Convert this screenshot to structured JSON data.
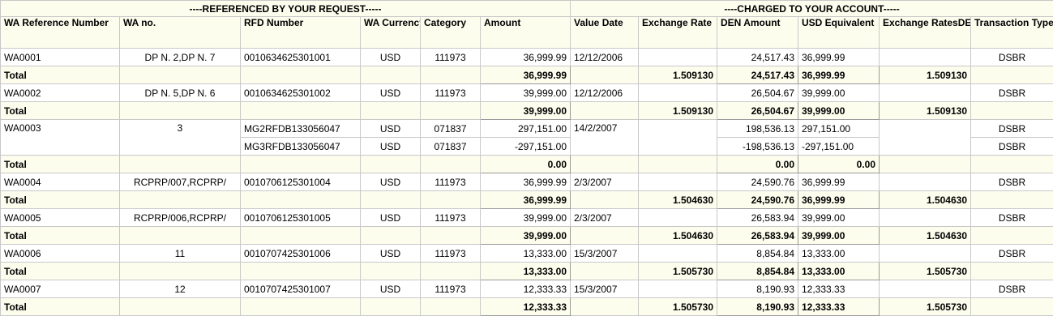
{
  "groups": {
    "referenced": "----REFERENCED BY YOUR REQUEST-----",
    "charged": "----CHARGED TO YOUR ACCOUNT-----"
  },
  "columns": [
    "WA Reference Number",
    "WA no.",
    "RFD Number",
    "WA Currency",
    "Category",
    "Amount",
    "Value Date",
    "Exchange Rate",
    "DEN Amount",
    "USD Equivalent",
    "Exchange RatesDEN/USD",
    "Transaction Type"
  ],
  "total_label": "Total",
  "records": [
    {
      "ref": "WA0001",
      "wa_no": "DP N. 2,DP N. 7",
      "value_date": "12/12/2006",
      "lines": [
        {
          "rfd": "0010634625301001",
          "currency": "USD",
          "category": "111973",
          "amount": "36,999.99",
          "den": "24,517.43",
          "usd": "36,999.99",
          "type": "DSBR"
        }
      ],
      "total": {
        "amount": "36,999.99",
        "rate": "1.509130",
        "den": "24,517.43",
        "usd": "36,999.99",
        "den_usd": "1.509130"
      }
    },
    {
      "ref": "WA0002",
      "wa_no": "DP N. 5,DP N. 6",
      "value_date": "12/12/2006",
      "lines": [
        {
          "rfd": "0010634625301002",
          "currency": "USD",
          "category": "111973",
          "amount": "39,999.00",
          "den": "26,504.67",
          "usd": "39,999.00",
          "type": "DSBR"
        }
      ],
      "total": {
        "amount": "39,999.00",
        "rate": "1.509130",
        "den": "26,504.67",
        "usd": "39,999.00",
        "den_usd": "1.509130"
      }
    },
    {
      "ref": "WA0003",
      "wa_no": "3",
      "value_date": "14/2/2007",
      "lines": [
        {
          "rfd": "MG2RFDB133056047",
          "currency": "USD",
          "category": "071837",
          "amount": "297,151.00",
          "den": "198,536.13",
          "usd": "297,151.00",
          "type": "DSBR"
        },
        {
          "rfd": "MG3RFDB133056047",
          "currency": "USD",
          "category": "071837",
          "amount": "-297,151.00",
          "den": "-198,536.13",
          "usd": "-297,151.00",
          "type": "DSBR"
        }
      ],
      "total": {
        "amount": "0.00",
        "rate": "",
        "den": "0.00",
        "usd": "0.00",
        "den_usd": ""
      }
    },
    {
      "ref": "WA0004",
      "wa_no": "RCPRP/007,RCPRP/",
      "value_date": "2/3/2007",
      "lines": [
        {
          "rfd": "0010706125301004",
          "currency": "USD",
          "category": "111973",
          "amount": "36,999.99",
          "den": "24,590.76",
          "usd": "36,999.99",
          "type": "DSBR"
        }
      ],
      "total": {
        "amount": "36,999.99",
        "rate": "1.504630",
        "den": "24,590.76",
        "usd": "36,999.99",
        "den_usd": "1.504630"
      }
    },
    {
      "ref": "WA0005",
      "wa_no": "RCPRP/006,RCPRP/",
      "value_date": "2/3/2007",
      "lines": [
        {
          "rfd": "0010706125301005",
          "currency": "USD",
          "category": "111973",
          "amount": "39,999.00",
          "den": "26,583.94",
          "usd": "39,999.00",
          "type": "DSBR"
        }
      ],
      "total": {
        "amount": "39,999.00",
        "rate": "1.504630",
        "den": "26,583.94",
        "usd": "39,999.00",
        "den_usd": "1.504630"
      }
    },
    {
      "ref": "WA0006",
      "wa_no": "11",
      "value_date": "15/3/2007",
      "lines": [
        {
          "rfd": "0010707425301006",
          "currency": "USD",
          "category": "111973",
          "amount": "13,333.00",
          "den": "8,854.84",
          "usd": "13,333.00",
          "type": "DSBR"
        }
      ],
      "total": {
        "amount": "13,333.00",
        "rate": "1.505730",
        "den": "8,854.84",
        "usd": "13,333.00",
        "den_usd": "1.505730"
      }
    },
    {
      "ref": "WA0007",
      "wa_no": "12",
      "value_date": "15/3/2007",
      "lines": [
        {
          "rfd": "0010707425301007",
          "currency": "USD",
          "category": "111973",
          "amount": "12,333.33",
          "den": "8,190.93",
          "usd": "12,333.33",
          "type": "DSBR"
        }
      ],
      "total": {
        "amount": "12,333.33",
        "rate": "1.505730",
        "den": "8,190.93",
        "usd": "12,333.33",
        "den_usd": "1.505730"
      }
    }
  ]
}
